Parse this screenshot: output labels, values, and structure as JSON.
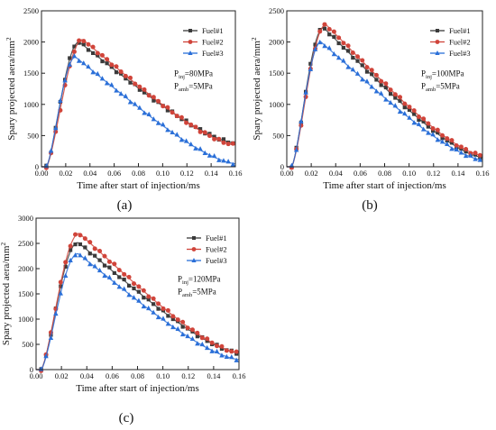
{
  "figure": {
    "colors": {
      "Fuel#1": "#3a3a3a",
      "Fuel#2": "#d0443a",
      "Fuel#3": "#2a6fd8"
    },
    "markers": {
      "Fuel#1": "square",
      "Fuel#2": "circle",
      "Fuel#3": "triangle"
    }
  },
  "chart_data": [
    {
      "id": "a",
      "type": "scatter",
      "panel_label": "(a)",
      "title": "",
      "xlabel": "Time after start of injection/ms",
      "ylabel": "Spary projected aera/mm",
      "ylabel_sup": "2",
      "xlim": [
        0,
        0.16
      ],
      "ylim": [
        0,
        2500
      ],
      "xticks": [
        "0.00",
        "0.02",
        "0.04",
        "0.06",
        "0.08",
        "0.10",
        "0.12",
        "0.14",
        "0.16"
      ],
      "yticks": [
        "0",
        "500",
        "1000",
        "1500",
        "2000",
        "2500"
      ],
      "legend_position": "top-right",
      "conditions": {
        "inj": {
          "base": "P",
          "sub": "inj",
          "value": "=80MPa"
        },
        "amb": {
          "base": "P",
          "sub": "amb",
          "value": "=5MPa"
        }
      },
      "series": [
        {
          "name": "Fuel#1",
          "peak_x": 0.031,
          "peak_y": 2000,
          "end_y": 380
        },
        {
          "name": "Fuel#2",
          "peak_x": 0.034,
          "peak_y": 2040,
          "end_y": 350
        },
        {
          "name": "Fuel#3",
          "peak_x": 0.028,
          "peak_y": 1760,
          "end_y": 50
        }
      ]
    },
    {
      "id": "b",
      "type": "scatter",
      "panel_label": "(b)",
      "title": "",
      "xlabel": "Time after start of injection/ms",
      "ylabel": "Spary projected aera/mm",
      "ylabel_sup": "2",
      "xlim": [
        0,
        0.16
      ],
      "ylim": [
        0,
        2500
      ],
      "xticks": [
        "0.00",
        "0.02",
        "0.04",
        "0.06",
        "0.08",
        "0.10",
        "0.12",
        "0.14",
        "0.16"
      ],
      "yticks": [
        "0",
        "500",
        "1000",
        "1500",
        "2000",
        "2500"
      ],
      "legend_position": "top-right",
      "conditions": {
        "inj": {
          "base": "P",
          "sub": "inj",
          "value": "=100MPa"
        },
        "amb": {
          "base": "P",
          "sub": "amb",
          "value": "=5MPa"
        }
      },
      "series": [
        {
          "name": "Fuel#1",
          "peak_x": 0.03,
          "peak_y": 2230,
          "end_y": 150
        },
        {
          "name": "Fuel#2",
          "peak_x": 0.032,
          "peak_y": 2280,
          "end_y": 180
        },
        {
          "name": "Fuel#3",
          "peak_x": 0.028,
          "peak_y": 2000,
          "end_y": 110
        }
      ]
    },
    {
      "id": "c",
      "type": "scatter",
      "panel_label": "(c)",
      "title": "",
      "xlabel": "Time after start of injection/ms",
      "ylabel": "Spary projected aera/mm",
      "ylabel_sup": "2",
      "xlim": [
        0,
        0.16
      ],
      "ylim": [
        0,
        3000
      ],
      "xticks": [
        "0.00",
        "0.02",
        "0.04",
        "0.06",
        "0.08",
        "0.10",
        "0.12",
        "0.14",
        "0.16"
      ],
      "yticks": [
        "0",
        "500",
        "1000",
        "1500",
        "2000",
        "2500",
        "3000"
      ],
      "legend_position": "top-right",
      "conditions": {
        "inj": {
          "base": "P",
          "sub": "inj",
          "value": "=120MPa"
        },
        "amb": {
          "base": "P",
          "sub": "amb",
          "value": "=5MPa"
        }
      },
      "series": [
        {
          "name": "Fuel#1",
          "peak_x": 0.033,
          "peak_y": 2520,
          "end_y": 330
        },
        {
          "name": "Fuel#2",
          "peak_x": 0.034,
          "peak_y": 2700,
          "end_y": 330
        },
        {
          "name": "Fuel#3",
          "peak_x": 0.033,
          "peak_y": 2300,
          "end_y": 200
        }
      ]
    }
  ]
}
